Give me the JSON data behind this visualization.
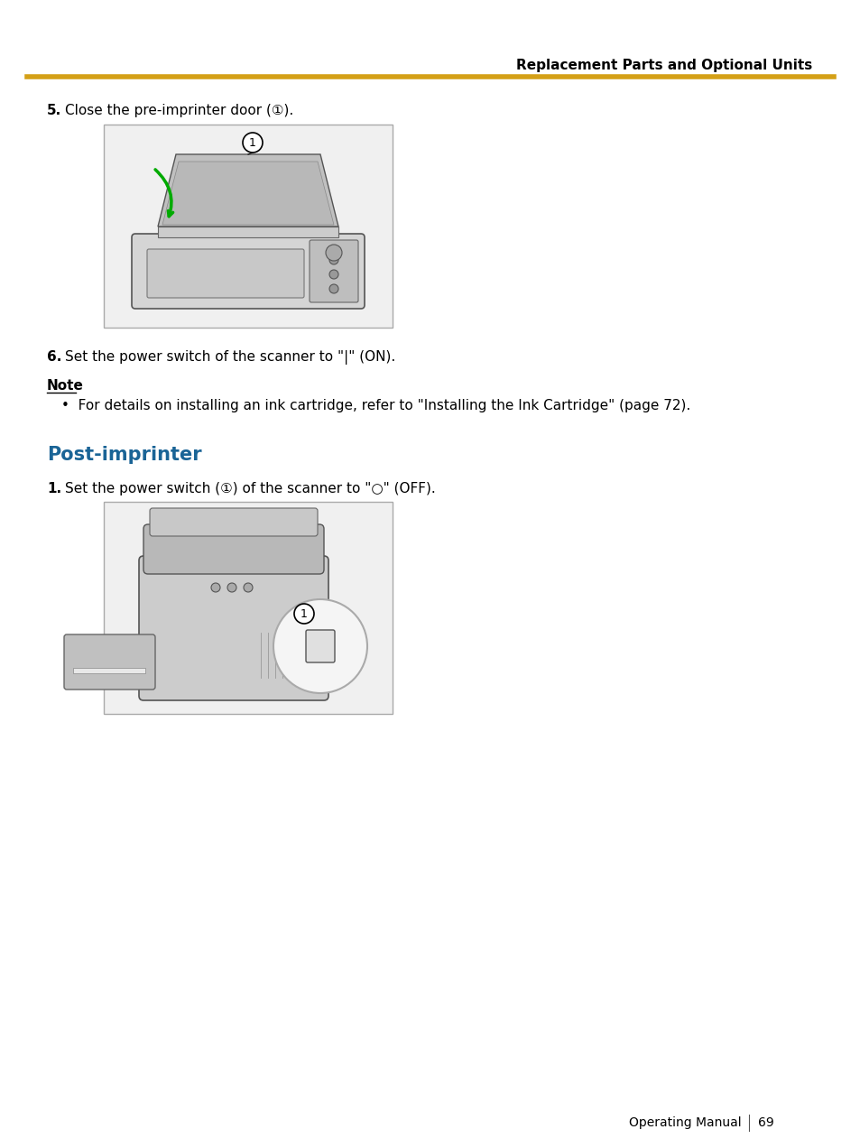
{
  "page_background": "#ffffff",
  "header_text": "Replacement Parts and Optional Units",
  "header_text_color": "#000000",
  "header_line_color": "#D4A017",
  "header_line_thickness": 4,
  "step5_label": "5.",
  "step5_text": "Close the pre-imprinter door (①).",
  "step6_label": "6.",
  "step6_text": "Set the power switch of the scanner to \"|\" (ON).",
  "note_label": "Note",
  "note_bullet": "•  For details on installing an ink cartridge, refer to \"Installing the Ink Cartridge\" (page 72).",
  "section_title": "Post-imprinter",
  "section_title_color": "#1a6496",
  "step1_label": "1.",
  "step1_text": "Set the power switch (①) of the scanner to \"○\" (OFF).",
  "footer_text": "Operating Manual",
  "footer_page": "69",
  "text_color": "#000000",
  "font_size_body": 11,
  "font_size_header": 11,
  "font_size_section": 15,
  "font_size_note_label": 11,
  "font_size_footer": 10
}
